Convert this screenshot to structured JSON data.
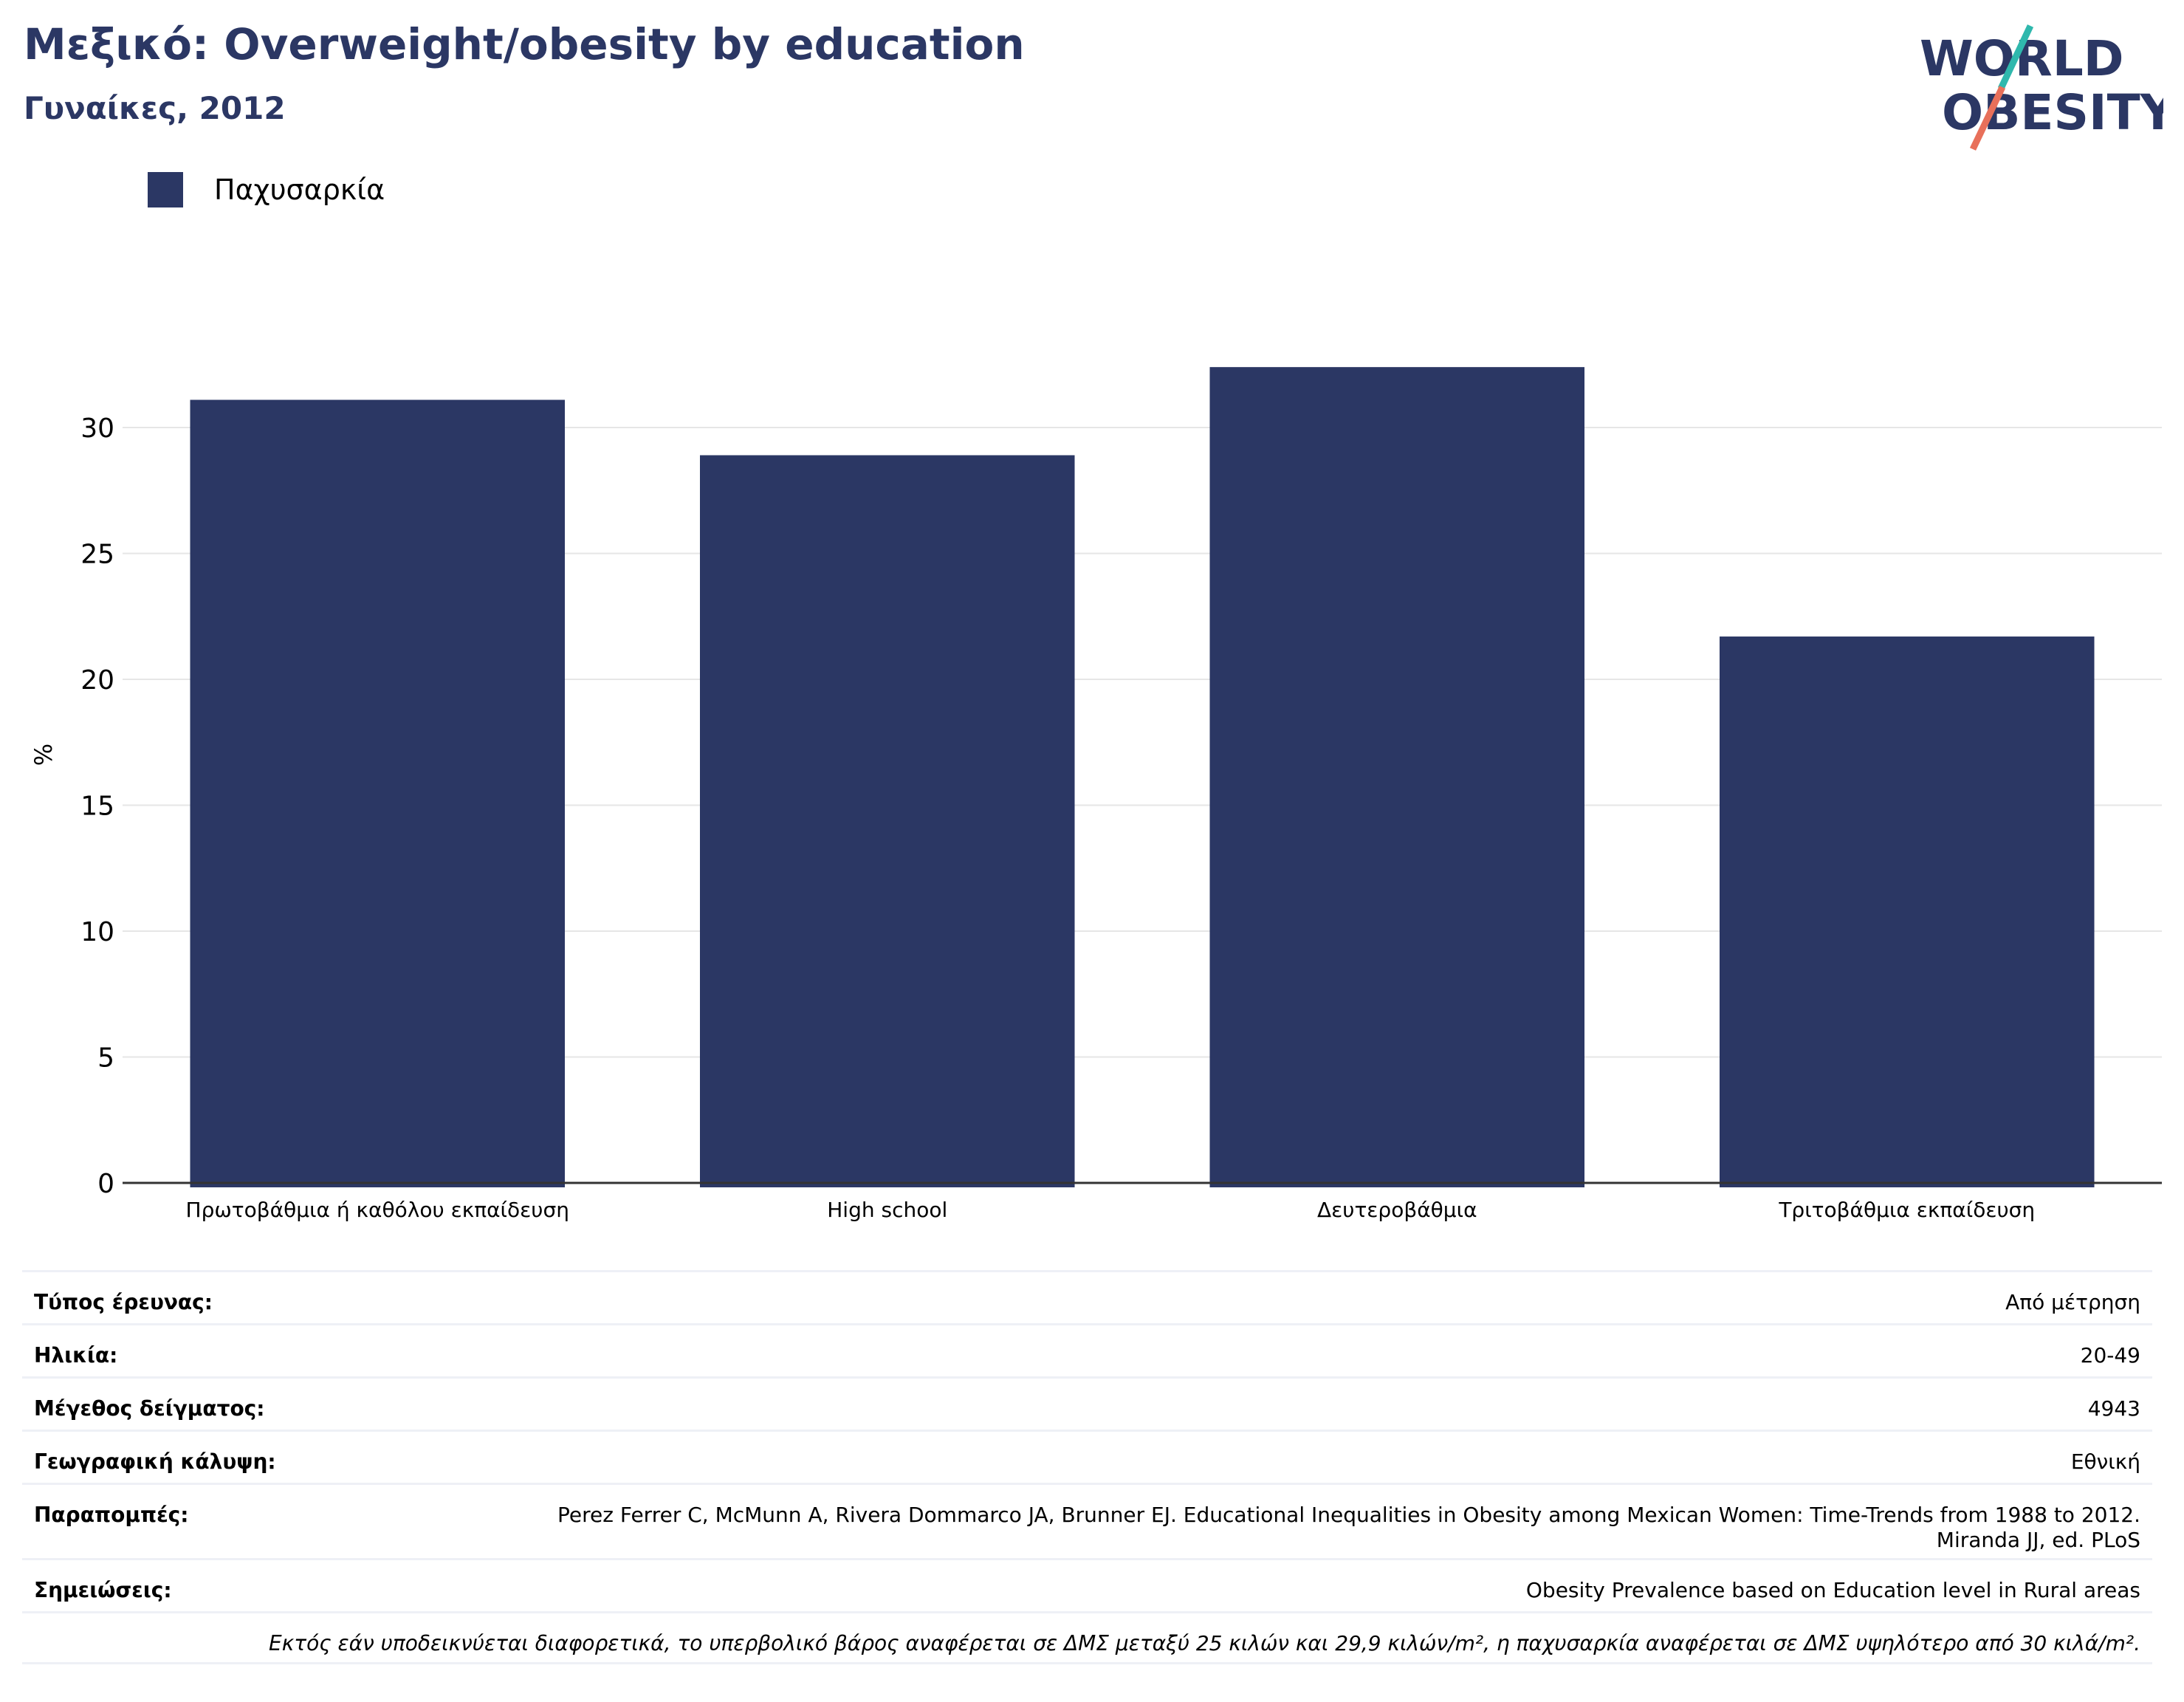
{
  "header": {
    "title": "Μεξικό: Overweight/obesity by education",
    "subtitle": "Γυναίκες, 2012"
  },
  "logo": {
    "line1": "WORLD",
    "line2": "OBESITY",
    "slash_teal": "#2fb8ad",
    "slash_coral": "#e8705a",
    "text_color": "#2b3764"
  },
  "colors": {
    "bar": "#2b3764",
    "grid": "#e6e6e6",
    "axis": "#333333"
  },
  "chart_data": {
    "type": "bar",
    "categories": [
      "Πρωτοβάθμια ή καθόλου εκπαίδευση",
      "High school",
      "Δευτεροβάθμια",
      "Τριτοβάθμια εκπαίδευση"
    ],
    "series": [
      {
        "name": "Παχυσαρκία",
        "values": [
          31.1,
          28.9,
          32.4,
          21.7
        ]
      }
    ],
    "ylabel": "%",
    "xlabel": "",
    "ylim": [
      0,
      35
    ],
    "yticks": [
      0,
      5,
      10,
      15,
      20,
      25,
      30
    ],
    "grid": true,
    "legend": "top-left"
  },
  "info": {
    "survey_type": {
      "label": "Τύπος έρευνας:",
      "value": "Από μέτρηση"
    },
    "age": {
      "label": "Ηλικία:",
      "value": "20-49"
    },
    "sample_size": {
      "label": "Μέγεθος δείγματος:",
      "value": "4943"
    },
    "coverage": {
      "label": "Γεωγραφική κάλυψη:",
      "value": "Εθνική"
    },
    "references": {
      "label": "Παραπομπές:",
      "value": "Perez Ferrer C, McMunn A, Rivera Dommarco JA, Brunner EJ. Educational Inequalities in Obesity among Mexican Women: Time-Trends from 1988 to 2012. Miranda JJ, ed. PLoS"
    },
    "notes": {
      "label": "Σημειώσεις:",
      "value": "Obesity Prevalence based on Education level in Rural areas"
    },
    "footnote": "Εκτός εάν υποδεικνύεται διαφορετικά, το υπερβολικό βάρος αναφέρεται σε ΔΜΣ μεταξύ 25 κιλών και 29,9 κιλών/m², η παχυσαρκία αναφέρεται σε ΔΜΣ υψηλότερο από 30 κιλά/m²."
  }
}
